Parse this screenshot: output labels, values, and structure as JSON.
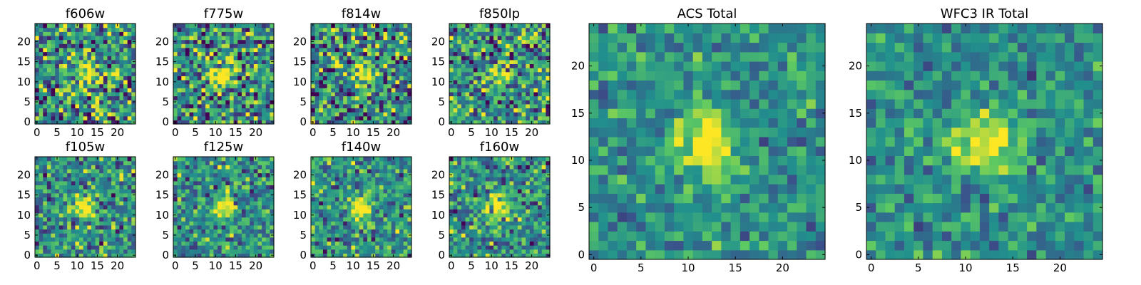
{
  "chart_data": [
    {
      "type": "heatmap",
      "title": "f606w",
      "xticks": [
        0,
        5,
        10,
        15,
        20
      ],
      "yticks": [
        0,
        5,
        10,
        15,
        20
      ],
      "xlim": [
        -0.5,
        24.5
      ],
      "ylim": [
        -0.5,
        24.5
      ],
      "grid_size": [
        25,
        25
      ],
      "source_center": [
        12,
        12
      ],
      "source_peak": "bright compact blob",
      "noise": "high"
    },
    {
      "type": "heatmap",
      "title": "f775w",
      "xticks": [
        0,
        5,
        10,
        15,
        20
      ],
      "yticks": [
        0,
        5,
        10,
        15,
        20
      ],
      "xlim": [
        -0.5,
        24.5
      ],
      "ylim": [
        -0.5,
        24.5
      ],
      "grid_size": [
        25,
        25
      ],
      "source_center": [
        12,
        12
      ],
      "noise": "high"
    },
    {
      "type": "heatmap",
      "title": "f814w",
      "xticks": [
        0,
        5,
        10,
        15,
        20
      ],
      "yticks": [
        0,
        5,
        10,
        15,
        20
      ],
      "xlim": [
        -0.5,
        24.5
      ],
      "ylim": [
        -0.5,
        24.5
      ],
      "grid_size": [
        25,
        25
      ],
      "source_center": [
        12,
        12
      ],
      "noise": "high"
    },
    {
      "type": "heatmap",
      "title": "f850lp",
      "xticks": [
        0,
        5,
        10,
        15,
        20
      ],
      "yticks": [
        0,
        5,
        10,
        15,
        20
      ],
      "xlim": [
        -0.5,
        24.5
      ],
      "ylim": [
        -0.5,
        24.5
      ],
      "grid_size": [
        25,
        25
      ],
      "source_center": [
        12,
        12
      ],
      "noise": "high"
    },
    {
      "type": "heatmap",
      "title": "f105w",
      "xticks": [
        0,
        5,
        10,
        15,
        20
      ],
      "yticks": [
        0,
        5,
        10,
        15,
        20
      ],
      "xlim": [
        -0.5,
        24.5
      ],
      "ylim": [
        -0.5,
        24.5
      ],
      "grid_size": [
        25,
        25
      ],
      "source_center": [
        12,
        12
      ],
      "noise": "medium"
    },
    {
      "type": "heatmap",
      "title": "f125w",
      "xticks": [
        0,
        5,
        10,
        15,
        20
      ],
      "yticks": [
        0,
        5,
        10,
        15,
        20
      ],
      "xlim": [
        -0.5,
        24.5
      ],
      "ylim": [
        -0.5,
        24.5
      ],
      "grid_size": [
        25,
        25
      ],
      "source_center": [
        12,
        12
      ],
      "noise": "medium"
    },
    {
      "type": "heatmap",
      "title": "f140w",
      "xticks": [
        0,
        5,
        10,
        15,
        20
      ],
      "yticks": [
        0,
        5,
        10,
        15,
        20
      ],
      "xlim": [
        -0.5,
        24.5
      ],
      "ylim": [
        -0.5,
        24.5
      ],
      "grid_size": [
        25,
        25
      ],
      "source_center": [
        12,
        12
      ],
      "noise": "medium"
    },
    {
      "type": "heatmap",
      "title": "f160w",
      "xticks": [
        0,
        5,
        10,
        15,
        20
      ],
      "yticks": [
        0,
        5,
        10,
        15,
        20
      ],
      "xlim": [
        -0.5,
        24.5
      ],
      "ylim": [
        -0.5,
        24.5
      ],
      "grid_size": [
        25,
        25
      ],
      "source_center": [
        12,
        12
      ],
      "noise": "medium"
    },
    {
      "type": "heatmap",
      "title": "ACS Total",
      "xticks": [
        0,
        5,
        10,
        15,
        20
      ],
      "yticks": [
        0,
        5,
        10,
        15,
        20
      ],
      "xlim": [
        -0.5,
        24.5
      ],
      "ylim": [
        -0.5,
        24.5
      ],
      "grid_size": [
        25,
        25
      ],
      "source_center": [
        12,
        12
      ],
      "noise": "low"
    },
    {
      "type": "heatmap",
      "title": "WFC3 IR Total",
      "xticks": [
        0,
        5,
        10,
        15,
        20
      ],
      "yticks": [
        0,
        5,
        10,
        15,
        20
      ],
      "xlim": [
        -0.5,
        24.5
      ],
      "ylim": [
        -0.5,
        24.5
      ],
      "grid_size": [
        25,
        25
      ],
      "source_center": [
        12,
        12
      ],
      "noise": "low"
    }
  ],
  "colormap": [
    "#440154",
    "#3b528b",
    "#21908d",
    "#5dc962",
    "#fde725"
  ],
  "colors": {
    "axis": "#000000",
    "background": "#ffffff"
  }
}
